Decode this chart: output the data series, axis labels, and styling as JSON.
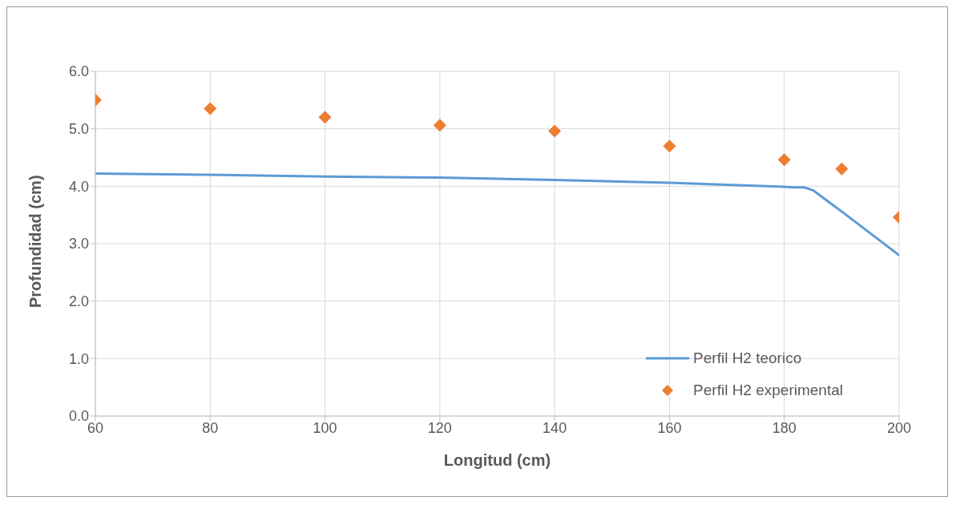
{
  "chart_data": {
    "type": "line",
    "xlabel": "Longitud (cm)",
    "ylabel": "Profundidad (cm)",
    "xlim": [
      60,
      200
    ],
    "xticks": [
      60,
      80,
      100,
      120,
      140,
      160,
      180,
      200
    ],
    "ylim": [
      0,
      6
    ],
    "yticks": [
      {
        "value": 0,
        "label": "0.0"
      },
      {
        "value": 1,
        "label": "1.0"
      },
      {
        "value": 2,
        "label": "2.0"
      },
      {
        "value": 3,
        "label": "3.0"
      },
      {
        "value": 4,
        "label": "4.0"
      },
      {
        "value": 5,
        "label": "5.0"
      },
      {
        "value": 6,
        "label": "6.0"
      }
    ],
    "grid": true,
    "legend": "bottom right",
    "line_style": "solid",
    "series": [
      {
        "name": "Perfil H2 teorico",
        "color": "#5b9bd5",
        "x": [
          60,
          80,
          100,
          120,
          140,
          160,
          180,
          181.5,
          183.5,
          185,
          190,
          200
        ],
        "values": [
          4.22,
          4.2,
          4.17,
          4.15,
          4.11,
          4.06,
          3.99,
          3.98,
          3.98,
          3.93,
          3.56,
          2.8
        ]
      },
      {
        "name": "Perfil H2 experimental",
        "type": "scatter",
        "marker": "diamond",
        "color": "#ed7d31",
        "x": [
          60,
          80,
          100,
          120,
          140,
          160,
          180,
          190,
          200
        ],
        "values": [
          5.5,
          5.35,
          5.2,
          5.06,
          4.96,
          4.7,
          4.46,
          4.3,
          3.46
        ]
      }
    ]
  }
}
